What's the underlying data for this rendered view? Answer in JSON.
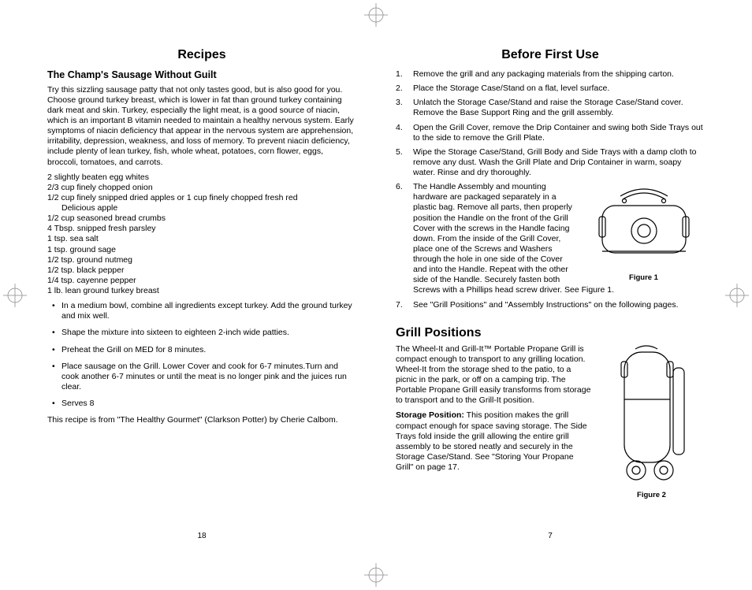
{
  "left": {
    "title": "Recipes",
    "subtitle": "The Champ's Sausage Without Guilt",
    "intro": "Try this sizzling sausage patty that not only tastes good, but is also good for you. Choose ground turkey breast, which is lower in fat than ground turkey containing dark meat and skin. Turkey, especially the light meat, is a good source of niacin, which is an important B vitamin needed to maintain a healthy nervous system. Early symptoms of niacin deficiency that appear in the nervous system are apprehension, irritability, depression, weakness, and loss of memory. To prevent niacin deficiency, include plenty of lean turkey, fish, whole wheat, potatoes, corn flower, eggs, broccoli, tomatoes, and carrots.",
    "ingredients": [
      {
        "text": "2 slightly beaten egg whites",
        "indent": false
      },
      {
        "text": "2/3 cup finely chopped onion",
        "indent": false
      },
      {
        "text": "1/2 cup finely snipped dried apples or 1 cup finely chopped fresh red",
        "indent": false
      },
      {
        "text": "Delicious apple",
        "indent": true
      },
      {
        "text": "1/2 cup seasoned bread crumbs",
        "indent": false
      },
      {
        "text": "4 Tbsp. snipped fresh parsley",
        "indent": false
      },
      {
        "text": "1 tsp. sea salt",
        "indent": false
      },
      {
        "text": "1 tsp. ground sage",
        "indent": false
      },
      {
        "text": "1/2 tsp. ground nutmeg",
        "indent": false
      },
      {
        "text": "1/2 tsp. black pepper",
        "indent": false
      },
      {
        "text": "1/4 tsp. cayenne pepper",
        "indent": false
      },
      {
        "text": "1 lb. lean ground turkey breast",
        "indent": false
      }
    ],
    "steps": [
      "In a medium bowl, combine all ingredients except turkey.  Add the ground turkey and mix well.",
      "Shape the mixture into sixteen to eighteen 2-inch wide patties.",
      "Preheat the Grill on MED for 8 minutes.",
      "Place sausage on the Grill. Lower Cover and cook for 6-7 minutes.Turn and cook another 6-7 minutes or until the meat is no longer pink and the juices run clear.",
      "Serves 8"
    ],
    "credit": "This recipe is from \"The Healthy Gourmet\" (Clarkson Potter) by Cherie Calbom.",
    "pageNum": "18"
  },
  "right": {
    "title": "Before First Use",
    "numbered": [
      "Remove the grill and any packaging materials from the shipping carton.",
      "Place the Storage Case/Stand on a flat, level surface.",
      "Unlatch the Storage Case/Stand and raise the Storage Case/Stand cover. Remove the Base Support Ring and the grill assembly.",
      "Open the Grill Cover, remove the Drip Container and swing both Side Trays out to the side to remove the Grill Plate.",
      "Wipe the Storage Case/Stand, Grill Body and Side Trays with a damp cloth to remove any dust. Wash the Grill Plate and Drip Container in warm, soapy water. Rinse and dry thoroughly."
    ],
    "step6": "The Handle Assembly and mounting hardware are packaged separately in a plastic bag. Remove all parts, then properly position the Handle on the front of the Grill Cover with the screws in the Handle facing down. From the inside of the Grill Cover, place one of the Screws and Washers through the hole in one side of the Cover and into the Handle. Repeat with the other side of the Handle. Securely fasten both Screws with a Phillips head screw driver. See Figure 1.",
    "step7": "See \"Grill Positions\" and \"Assembly Instructions\" on the following pages.",
    "fig1": "Figure 1",
    "section2": "Grill Positions",
    "grillIntro": "The Wheel-It and Grill-It™ Portable Propane Grill is compact enough to transport to any grilling location. Wheel-It from the storage shed to the patio, to a picnic in the park, or off on a camping trip. The Portable Propane Grill easily transforms from storage to transport and to the Grill-It position.",
    "storageLabel": "Storage Position:",
    "storageText": "  This position makes the grill compact enough for space saving storage. The Side Trays fold inside the grill allowing the entire grill assembly to be stored neatly and securely in the Storage Case/Stand. See \"Storing Your Propane Grill\" on page 17.",
    "fig2": "Figure 2",
    "pageNum": "7"
  }
}
